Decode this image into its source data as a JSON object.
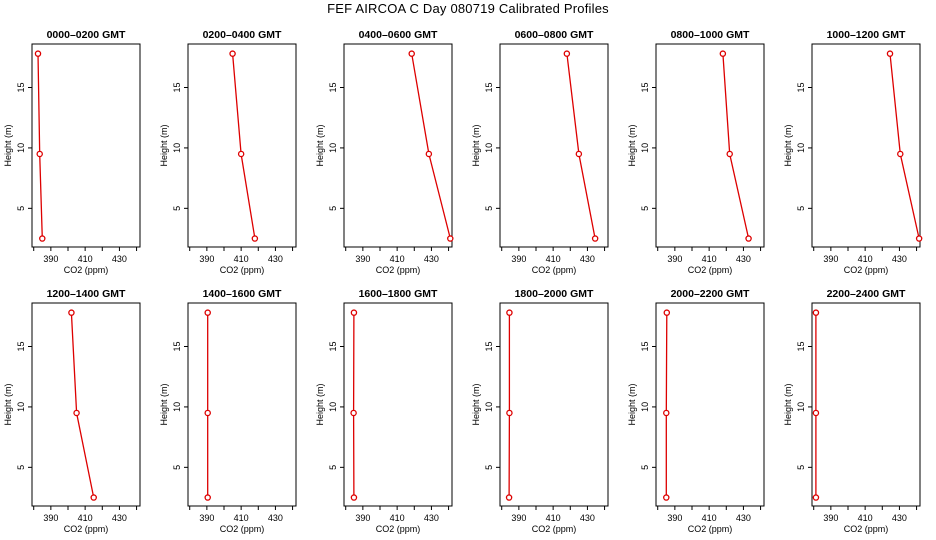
{
  "page": {
    "title": "FEF  AIRCOA C  Day 080719  Calibrated Profiles"
  },
  "chart_data": [
    {
      "type": "line",
      "title": "0000–0200 GMT",
      "xlabel": "CO2 (ppm)",
      "ylabel": "Height (m)",
      "xlim": [
        379,
        442
      ],
      "ylim": [
        1.8,
        18.6
      ],
      "xticks": [
        390,
        410,
        430
      ],
      "xticks_minor": [
        380,
        400,
        420,
        440
      ],
      "yticks": [
        5,
        10,
        15
      ],
      "series": [
        {
          "name": "profile",
          "color": "#dd0000",
          "points": [
            {
              "x": 382.5,
              "y": 17.8
            },
            {
              "x": 383.5,
              "y": 9.5
            },
            {
              "x": 385.0,
              "y": 2.5
            }
          ]
        }
      ]
    },
    {
      "type": "line",
      "title": "0200–0400 GMT",
      "xlabel": "CO2 (ppm)",
      "ylabel": "Height (m)",
      "xlim": [
        379,
        442
      ],
      "ylim": [
        1.8,
        18.6
      ],
      "xticks": [
        390,
        410,
        430
      ],
      "xticks_minor": [
        380,
        400,
        420,
        440
      ],
      "yticks": [
        5,
        10,
        15
      ],
      "series": [
        {
          "name": "profile",
          "color": "#dd0000",
          "points": [
            {
              "x": 405.0,
              "y": 17.8
            },
            {
              "x": 410.0,
              "y": 9.5
            },
            {
              "x": 418.0,
              "y": 2.5
            }
          ]
        }
      ]
    },
    {
      "type": "line",
      "title": "0400–0600 GMT",
      "xlabel": "CO2 (ppm)",
      "ylabel": "Height (m)",
      "xlim": [
        379,
        442
      ],
      "ylim": [
        1.8,
        18.6
      ],
      "xticks": [
        390,
        410,
        430
      ],
      "xticks_minor": [
        380,
        400,
        420,
        440
      ],
      "yticks": [
        5,
        10,
        15
      ],
      "series": [
        {
          "name": "profile",
          "color": "#dd0000",
          "points": [
            {
              "x": 418.5,
              "y": 17.8
            },
            {
              "x": 428.5,
              "y": 9.5
            },
            {
              "x": 441.0,
              "y": 2.5
            }
          ]
        }
      ]
    },
    {
      "type": "line",
      "title": "0600–0800 GMT",
      "xlabel": "CO2 (ppm)",
      "ylabel": "Height (m)",
      "xlim": [
        379,
        442
      ],
      "ylim": [
        1.8,
        18.6
      ],
      "xticks": [
        390,
        410,
        430
      ],
      "xticks_minor": [
        380,
        400,
        420,
        440
      ],
      "yticks": [
        5,
        10,
        15
      ],
      "series": [
        {
          "name": "profile",
          "color": "#dd0000",
          "points": [
            {
              "x": 418.0,
              "y": 17.8
            },
            {
              "x": 425.0,
              "y": 9.5
            },
            {
              "x": 434.5,
              "y": 2.5
            }
          ]
        }
      ]
    },
    {
      "type": "line",
      "title": "0800–1000 GMT",
      "xlabel": "CO2 (ppm)",
      "ylabel": "Height (m)",
      "xlim": [
        379,
        442
      ],
      "ylim": [
        1.8,
        18.6
      ],
      "xticks": [
        390,
        410,
        430
      ],
      "xticks_minor": [
        380,
        400,
        420,
        440
      ],
      "yticks": [
        5,
        10,
        15
      ],
      "series": [
        {
          "name": "profile",
          "color": "#dd0000",
          "points": [
            {
              "x": 418.0,
              "y": 17.8
            },
            {
              "x": 422.0,
              "y": 9.5
            },
            {
              "x": 433.0,
              "y": 2.5
            }
          ]
        }
      ]
    },
    {
      "type": "line",
      "title": "1000–1200 GMT",
      "xlabel": "CO2 (ppm)",
      "ylabel": "Height (m)",
      "xlim": [
        379,
        442
      ],
      "ylim": [
        1.8,
        18.6
      ],
      "xticks": [
        390,
        410,
        430
      ],
      "xticks_minor": [
        380,
        400,
        420,
        440
      ],
      "yticks": [
        5,
        10,
        15
      ],
      "series": [
        {
          "name": "profile",
          "color": "#dd0000",
          "points": [
            {
              "x": 424.5,
              "y": 17.8
            },
            {
              "x": 430.5,
              "y": 9.5
            },
            {
              "x": 441.5,
              "y": 2.5
            }
          ]
        }
      ]
    },
    {
      "type": "line",
      "title": "1200–1400 GMT",
      "xlabel": "CO2 (ppm)",
      "ylabel": "Height (m)",
      "xlim": [
        379,
        442
      ],
      "ylim": [
        1.8,
        18.6
      ],
      "xticks": [
        390,
        410,
        430
      ],
      "xticks_minor": [
        380,
        400,
        420,
        440
      ],
      "yticks": [
        5,
        10,
        15
      ],
      "series": [
        {
          "name": "profile",
          "color": "#dd0000",
          "points": [
            {
              "x": 402.0,
              "y": 17.8
            },
            {
              "x": 405.0,
              "y": 9.5
            },
            {
              "x": 415.0,
              "y": 2.5
            }
          ]
        }
      ]
    },
    {
      "type": "line",
      "title": "1400–1600 GMT",
      "xlabel": "CO2 (ppm)",
      "ylabel": "Height (m)",
      "xlim": [
        379,
        442
      ],
      "ylim": [
        1.8,
        18.6
      ],
      "xticks": [
        390,
        410,
        430
      ],
      "xticks_minor": [
        380,
        400,
        420,
        440
      ],
      "yticks": [
        5,
        10,
        15
      ],
      "series": [
        {
          "name": "profile",
          "color": "#dd0000",
          "points": [
            {
              "x": 390.5,
              "y": 17.8
            },
            {
              "x": 390.5,
              "y": 9.5
            },
            {
              "x": 390.5,
              "y": 2.5
            }
          ]
        }
      ]
    },
    {
      "type": "line",
      "title": "1600–1800 GMT",
      "xlabel": "CO2 (ppm)",
      "ylabel": "Height (m)",
      "xlim": [
        379,
        442
      ],
      "ylim": [
        1.8,
        18.6
      ],
      "xticks": [
        390,
        410,
        430
      ],
      "xticks_minor": [
        380,
        400,
        420,
        440
      ],
      "yticks": [
        5,
        10,
        15
      ],
      "series": [
        {
          "name": "profile",
          "color": "#dd0000",
          "points": [
            {
              "x": 384.8,
              "y": 17.8
            },
            {
              "x": 384.6,
              "y": 9.5
            },
            {
              "x": 384.8,
              "y": 2.5
            }
          ]
        }
      ]
    },
    {
      "type": "line",
      "title": "1800–2000 GMT",
      "xlabel": "CO2 (ppm)",
      "ylabel": "Height (m)",
      "xlim": [
        379,
        442
      ],
      "ylim": [
        1.8,
        18.6
      ],
      "xticks": [
        390,
        410,
        430
      ],
      "xticks_minor": [
        380,
        400,
        420,
        440
      ],
      "yticks": [
        5,
        10,
        15
      ],
      "series": [
        {
          "name": "profile",
          "color": "#dd0000",
          "points": [
            {
              "x": 384.5,
              "y": 17.8
            },
            {
              "x": 384.5,
              "y": 9.5
            },
            {
              "x": 384.3,
              "y": 2.5
            }
          ]
        }
      ]
    },
    {
      "type": "line",
      "title": "2000–2200 GMT",
      "xlabel": "CO2 (ppm)",
      "ylabel": "Height (m)",
      "xlim": [
        379,
        442
      ],
      "ylim": [
        1.8,
        18.6
      ],
      "xticks": [
        390,
        410,
        430
      ],
      "xticks_minor": [
        380,
        400,
        420,
        440
      ],
      "yticks": [
        5,
        10,
        15
      ],
      "series": [
        {
          "name": "profile",
          "color": "#dd0000",
          "points": [
            {
              "x": 385.3,
              "y": 17.8
            },
            {
              "x": 385.0,
              "y": 9.5
            },
            {
              "x": 385.0,
              "y": 2.5
            }
          ]
        }
      ]
    },
    {
      "type": "line",
      "title": "2200–2400 GMT",
      "xlabel": "CO2 (ppm)",
      "ylabel": "Height (m)",
      "xlim": [
        379,
        442
      ],
      "ylim": [
        1.8,
        18.6
      ],
      "xticks": [
        390,
        410,
        430
      ],
      "xticks_minor": [
        380,
        400,
        420,
        440
      ],
      "yticks": [
        5,
        10,
        15
      ],
      "series": [
        {
          "name": "profile",
          "color": "#dd0000",
          "points": [
            {
              "x": 381.3,
              "y": 17.8
            },
            {
              "x": 381.3,
              "y": 9.5
            },
            {
              "x": 381.3,
              "y": 2.5
            }
          ]
        }
      ]
    }
  ]
}
